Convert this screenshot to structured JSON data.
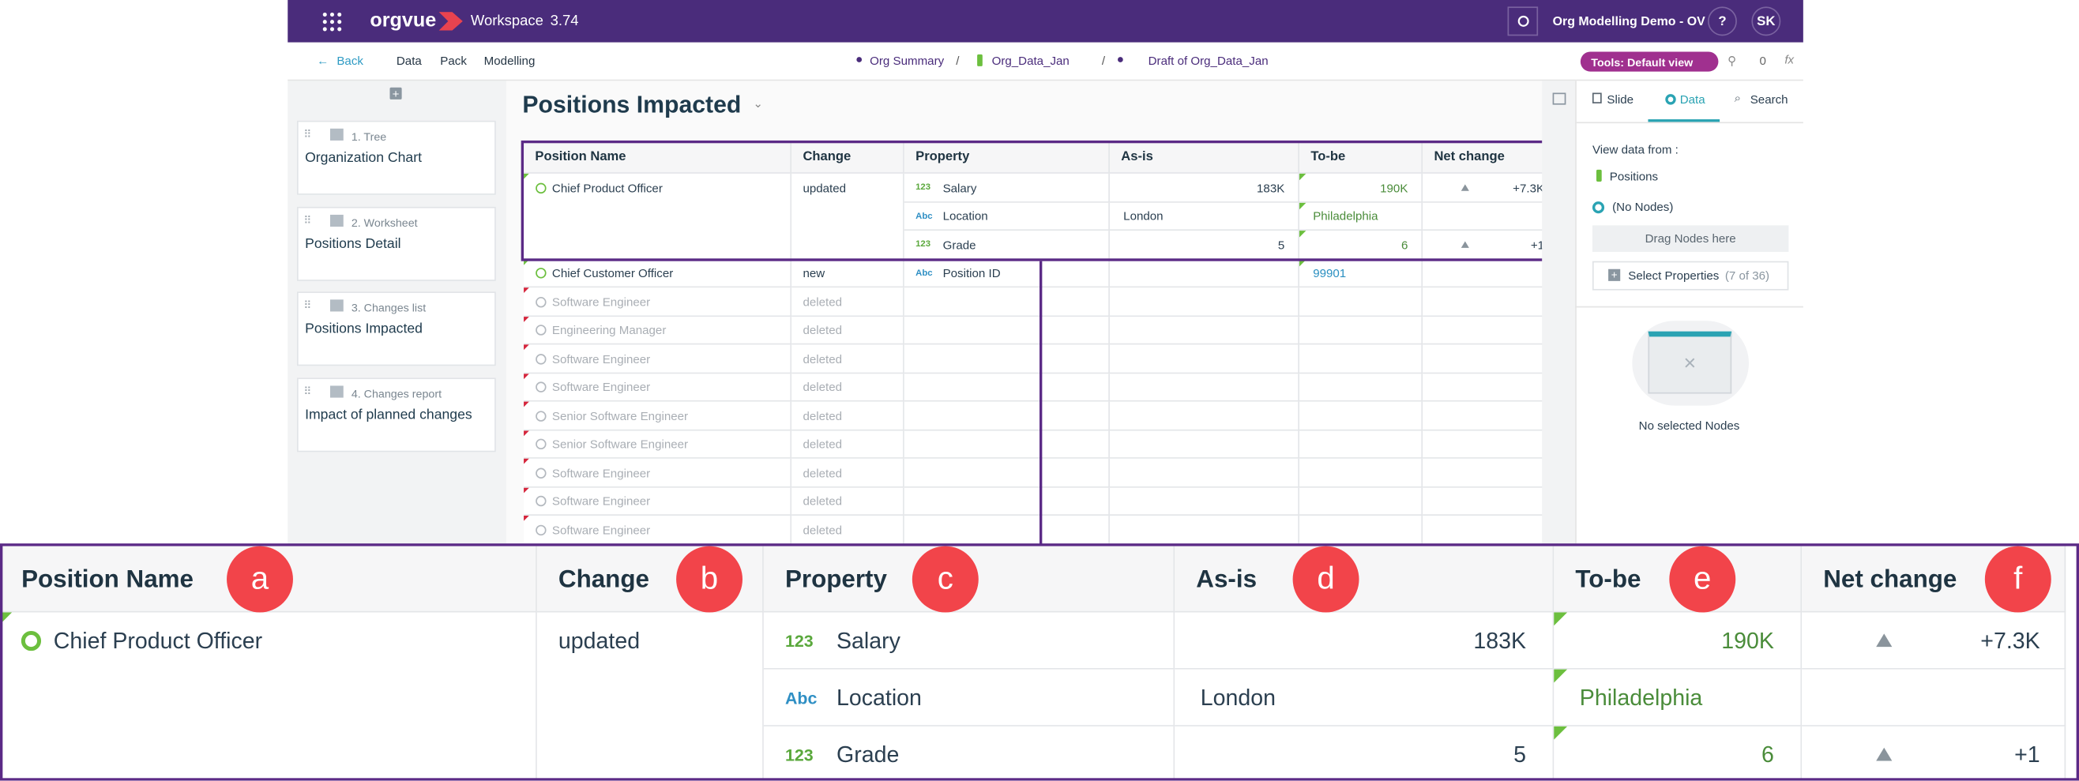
{
  "header": {
    "app": "orgvue",
    "workspace": "Workspace",
    "version": "3.74",
    "project": "Org Modelling Demo - OV",
    "help": "?",
    "user": "SK"
  },
  "nav": {
    "back": "Back",
    "menu": [
      "Data",
      "Pack",
      "Modelling"
    ],
    "breadcrumbs": [
      "Org Summary",
      "Org_Data_Jan",
      "Draft of Org_Data_Jan"
    ],
    "separator": "/",
    "tools": "Tools: Default view",
    "count": "0",
    "fx": "fx"
  },
  "sidebar": [
    {
      "number": "1. Tree",
      "title": "Organization Chart"
    },
    {
      "number": "2. Worksheet",
      "title": "Positions Detail"
    },
    {
      "number": "3. Changes list",
      "title": "Positions Impacted"
    },
    {
      "number": "4. Changes report",
      "title": "Impact of planned changes"
    }
  ],
  "main": {
    "title": "Positions Impacted"
  },
  "table": {
    "columns": [
      "Position Name",
      "Change",
      "Property",
      "As-is",
      "To-be",
      "Net change"
    ],
    "type_colors": {
      "123": "#5aa83c",
      "Abc": "#2f8fc4"
    },
    "rows": [
      {
        "name": "Chief Product Officer",
        "change": "updated",
        "text_color": "#2b3f50",
        "value_color": "#4a8c3a",
        "icon_color": "#6cbf3e",
        "props": [
          {
            "type": "123",
            "name": "Salary",
            "as_is": "183K",
            "to_be": "190K",
            "net": "+7.3K"
          },
          {
            "type": "Abc",
            "name": "Location",
            "as_is": "London",
            "to_be": "Philadelphia"
          },
          {
            "type": "123",
            "name": "Grade",
            "as_is": "5",
            "to_be": "6",
            "net": "+1"
          }
        ]
      },
      {
        "name": "Chief Customer Officer",
        "change": "new",
        "text_color": "#2b3f50",
        "value_color": "#2a8fc1",
        "icon_color": "#6cbf3e",
        "props": [
          {
            "type": "Abc",
            "name": "Position ID",
            "to_be": "99901"
          }
        ]
      },
      {
        "name": "Software Engineer",
        "change": "deleted",
        "text_color": "#a9aeb4",
        "icon_color": "#b4b9bf",
        "props": []
      },
      {
        "name": "Engineering Manager",
        "change": "deleted",
        "text_color": "#a9aeb4",
        "icon_color": "#b4b9bf",
        "props": []
      },
      {
        "name": "Software Engineer",
        "change": "deleted",
        "text_color": "#a9aeb4",
        "icon_color": "#b4b9bf",
        "props": []
      },
      {
        "name": "Software Engineer",
        "change": "deleted",
        "text_color": "#a9aeb4",
        "icon_color": "#b4b9bf",
        "props": []
      },
      {
        "name": "Senior Software Engineer",
        "change": "deleted",
        "text_color": "#a9aeb4",
        "icon_color": "#b4b9bf",
        "props": []
      },
      {
        "name": "Senior Software Engineer",
        "change": "deleted",
        "text_color": "#a9aeb4",
        "icon_color": "#b4b9bf",
        "props": []
      },
      {
        "name": "Software Engineer",
        "change": "deleted",
        "text_color": "#a9aeb4",
        "icon_color": "#b4b9bf",
        "props": []
      },
      {
        "name": "Software Engineer",
        "change": "deleted",
        "text_color": "#a9aeb4",
        "icon_color": "#b4b9bf",
        "props": []
      },
      {
        "name": "Software Engineer",
        "change": "deleted",
        "text_color": "#a9aeb4",
        "icon_color": "#b4b9bf",
        "props": []
      }
    ]
  },
  "panel": {
    "tabs": [
      "Slide",
      "Data",
      "Search"
    ],
    "view_label": "View data from :",
    "source": "Positions",
    "nodes": "(No Nodes)",
    "drag": "Drag Nodes here",
    "select": "Select Properties",
    "select_count": "(7 of 36)",
    "empty": "No selected Nodes"
  },
  "zoom": {
    "labels": [
      "a",
      "b",
      "c",
      "d",
      "e",
      "f"
    ]
  }
}
